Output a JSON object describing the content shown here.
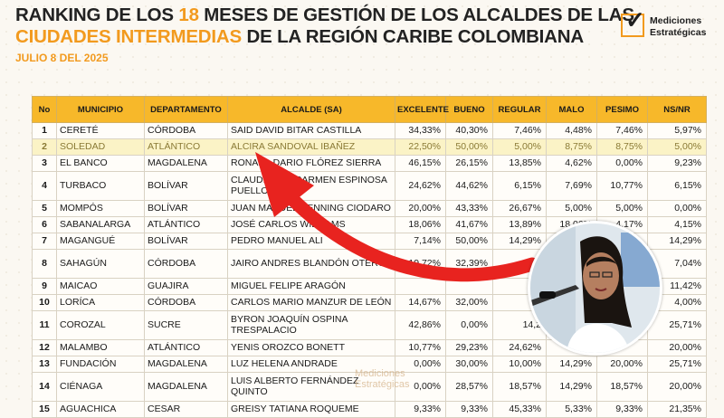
{
  "header": {
    "line1_a": "RANKING DE LOS ",
    "line1_hl": "18",
    "line1_b": " MESES DE GESTIÓN DE LOS ALCALDES DE LAS",
    "line2_hl": "CIUDADES INTERMEDIAS",
    "line2_b": " DE LA REGIÓN CARIBE COLOMBIANA",
    "date": "JULIO 8 DEL 2025"
  },
  "logo": {
    "line1": "Mediciones",
    "line2": "Estratégicas",
    "icon": "checkbox-icon"
  },
  "colors": {
    "accent": "#f29a1e",
    "header_bg": "#f7b82a",
    "highlight_row": "#fbf3c6",
    "arrow": "#e8231f"
  },
  "columns": [
    "No",
    "MUNICIPIO",
    "DEPARTAMENTO",
    "ALCALDE (SA)",
    "EXCELENTE",
    "BUENO",
    "REGULAR",
    "MALO",
    "PESIMO",
    "NS/NR"
  ],
  "rows": [
    {
      "no": "1",
      "mun": "CERETÉ",
      "dep": "CÓRDOBA",
      "alc": "SAID DAVID BITAR CASTILLA",
      "e": "34,33%",
      "b": "40,30%",
      "r": "7,46%",
      "m": "4,48%",
      "p": "7,46%",
      "ns": "5,97%"
    },
    {
      "no": "2",
      "mun": "SOLEDAD",
      "dep": "ATLÁNTICO",
      "alc": "ALCIRA SANDOVAL IBAÑEZ",
      "e": "22,50%",
      "b": "50,00%",
      "r": "5,00%",
      "m": "8,75%",
      "p": "8,75%",
      "ns": "5,00%"
    },
    {
      "no": "3",
      "mun": "EL BANCO",
      "dep": "MAGDALENA",
      "alc": "RONALD DARIO FLÓREZ SIERRA",
      "e": "46,15%",
      "b": "26,15%",
      "r": "13,85%",
      "m": "4,62%",
      "p": "0,00%",
      "ns": "9,23%"
    },
    {
      "no": "4",
      "mun": "TURBACO",
      "dep": "BOLÍVAR",
      "alc": "CLAUDIA DEL CARMEN ESPINOSA PUELLO",
      "e": "24,62%",
      "b": "44,62%",
      "r": "6,15%",
      "m": "7,69%",
      "p": "10,77%",
      "ns": "6,15%"
    },
    {
      "no": "5",
      "mun": "MOMPÓS",
      "dep": "BOLÍVAR",
      "alc": "JUAN MANUEL HENNING CIODARO",
      "e": "20,00%",
      "b": "43,33%",
      "r": "26,67%",
      "m": "5,00%",
      "p": "5,00%",
      "ns": "0,00%"
    },
    {
      "no": "6",
      "mun": "SABANALARGA",
      "dep": "ATLÁNTICO",
      "alc": "JOSÉ CARLOS WILLIAMS",
      "e": "18,06%",
      "b": "41,67%",
      "r": "13,89%",
      "m": "18,06%",
      "p": "4,17%",
      "ns": "4,15%"
    },
    {
      "no": "7",
      "mun": "MAGANGUÉ",
      "dep": "BOLÍVAR",
      "alc": "PEDRO MANUEL ALI",
      "e": "7,14%",
      "b": "50,00%",
      "r": "14,29%",
      "m": "",
      "p": "",
      "ns": "14,29%"
    },
    {
      "no": "8",
      "mun": "SAHAGÚN",
      "dep": "CÓRDOBA",
      "alc": "JAIRO ANDRES BLANDÓN OTERO",
      "e": "19,72%",
      "b": "32,39%",
      "r": "9,8",
      "m": "",
      "p": "",
      "ns": "7,04%"
    },
    {
      "no": "9",
      "mun": "MAICAO",
      "dep": "GUAJIRA",
      "alc": "MIGUEL FELIPE ARAGÓN",
      "e": "",
      "b": "",
      "r": "14",
      "m": "",
      "p": "",
      "ns": "11,42%"
    },
    {
      "no": "10",
      "mun": "LORÍCA",
      "dep": "CÓRDOBA",
      "alc": "CARLOS MARIO MANZUR DE LEÓN",
      "e": "14,67%",
      "b": "32,00%",
      "r": "10",
      "m": "",
      "p": "",
      "ns": "4,00%"
    },
    {
      "no": "11",
      "mun": "COROZAL",
      "dep": "SUCRE",
      "alc": "BYRON JOAQUÍN OSPINA TRESPALACIO",
      "e": "42,86%",
      "b": "0,00%",
      "r": "14,2",
      "m": "",
      "p": "",
      "ns": "25,71%"
    },
    {
      "no": "12",
      "mun": "MALAMBO",
      "dep": "ATLÁNTICO",
      "alc": "YENIS OROZCO BONETT",
      "e": "10,77%",
      "b": "29,23%",
      "r": "24,62%",
      "m": "",
      "p": "",
      "ns": "20,00%"
    },
    {
      "no": "13",
      "mun": "FUNDACIÓN",
      "dep": "MAGDALENA",
      "alc": "LUZ HELENA ANDRADE",
      "e": "0,00%",
      "b": "30,00%",
      "r": "10,00%",
      "m": "14,29%",
      "p": "20,00%",
      "ns": "25,71%"
    },
    {
      "no": "14",
      "mun": "CIÉNAGA",
      "dep": "MAGDALENA",
      "alc": "LUIS ALBERTO FERNÁNDEZ QUINTO",
      "e": "0,00%",
      "b": "28,57%",
      "r": "18,57%",
      "m": "14,29%",
      "p": "18,57%",
      "ns": "20,00%"
    },
    {
      "no": "15",
      "mun": "AGUACHICA",
      "dep": "CESAR",
      "alc": "GREISY TATIANA ROQUEME",
      "e": "9,33%",
      "b": "9,33%",
      "r": "45,33%",
      "m": "5,33%",
      "p": "9,33%",
      "ns": "21,35%"
    }
  ],
  "watermark": {
    "line1": "Mediciones",
    "line2": "Estratégicas"
  }
}
